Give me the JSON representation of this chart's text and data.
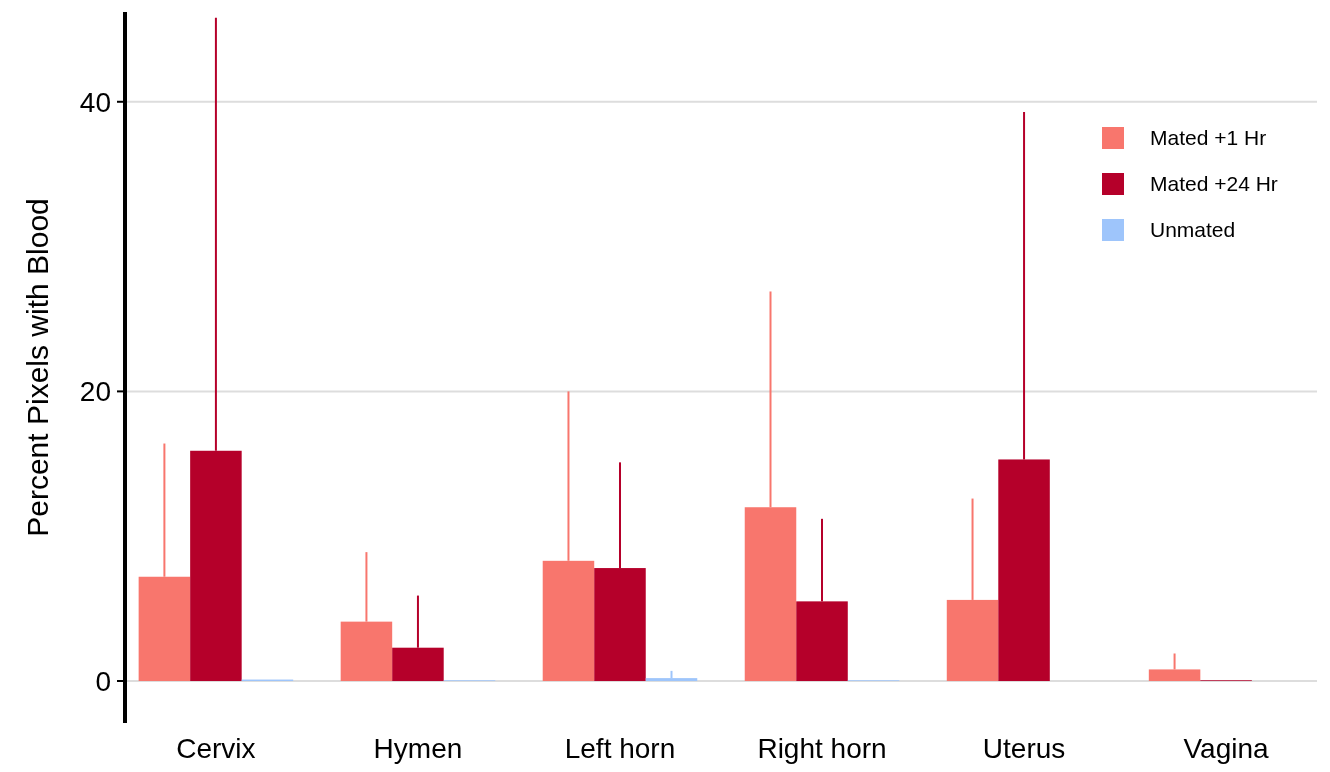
{
  "chart_data": {
    "type": "bar",
    "ylabel": "Percent Pixels with Blood",
    "categories": [
      "Cervix",
      "Hymen",
      "Left horn",
      "Right horn",
      "Uterus",
      "Vagina"
    ],
    "series": [
      {
        "name": "Mated +1 Hr",
        "color": "#f8766d",
        "values": [
          7.2,
          4.1,
          8.3,
          12.0,
          5.6,
          0.8
        ],
        "errors": [
          [
            7.2,
            16.4
          ],
          [
            4.1,
            8.9
          ],
          [
            8.3,
            20.0
          ],
          [
            12.0,
            26.9
          ],
          [
            5.6,
            12.6
          ],
          [
            0.8,
            1.9
          ]
        ]
      },
      {
        "name": "Mated +24 Hr",
        "color": "#b5002a",
        "values": [
          15.9,
          2.3,
          7.8,
          5.5,
          15.3,
          0.05
        ],
        "errors": [
          [
            15.9,
            45.8
          ],
          [
            2.3,
            5.9
          ],
          [
            7.8,
            15.1
          ],
          [
            5.5,
            11.2
          ],
          [
            15.3,
            39.3
          ],
          null
        ]
      },
      {
        "name": "Unmated",
        "color": "#9ec5fb",
        "values": [
          0.1,
          0.05,
          0.2,
          0.05,
          null,
          null
        ],
        "errors": [
          null,
          null,
          [
            0.2,
            0.7
          ],
          null,
          null,
          null
        ]
      }
    ],
    "ylim": [
      -2.9,
      46.2
    ],
    "yticks": [
      0,
      20,
      40
    ],
    "grid": "y",
    "legend": "top right"
  }
}
